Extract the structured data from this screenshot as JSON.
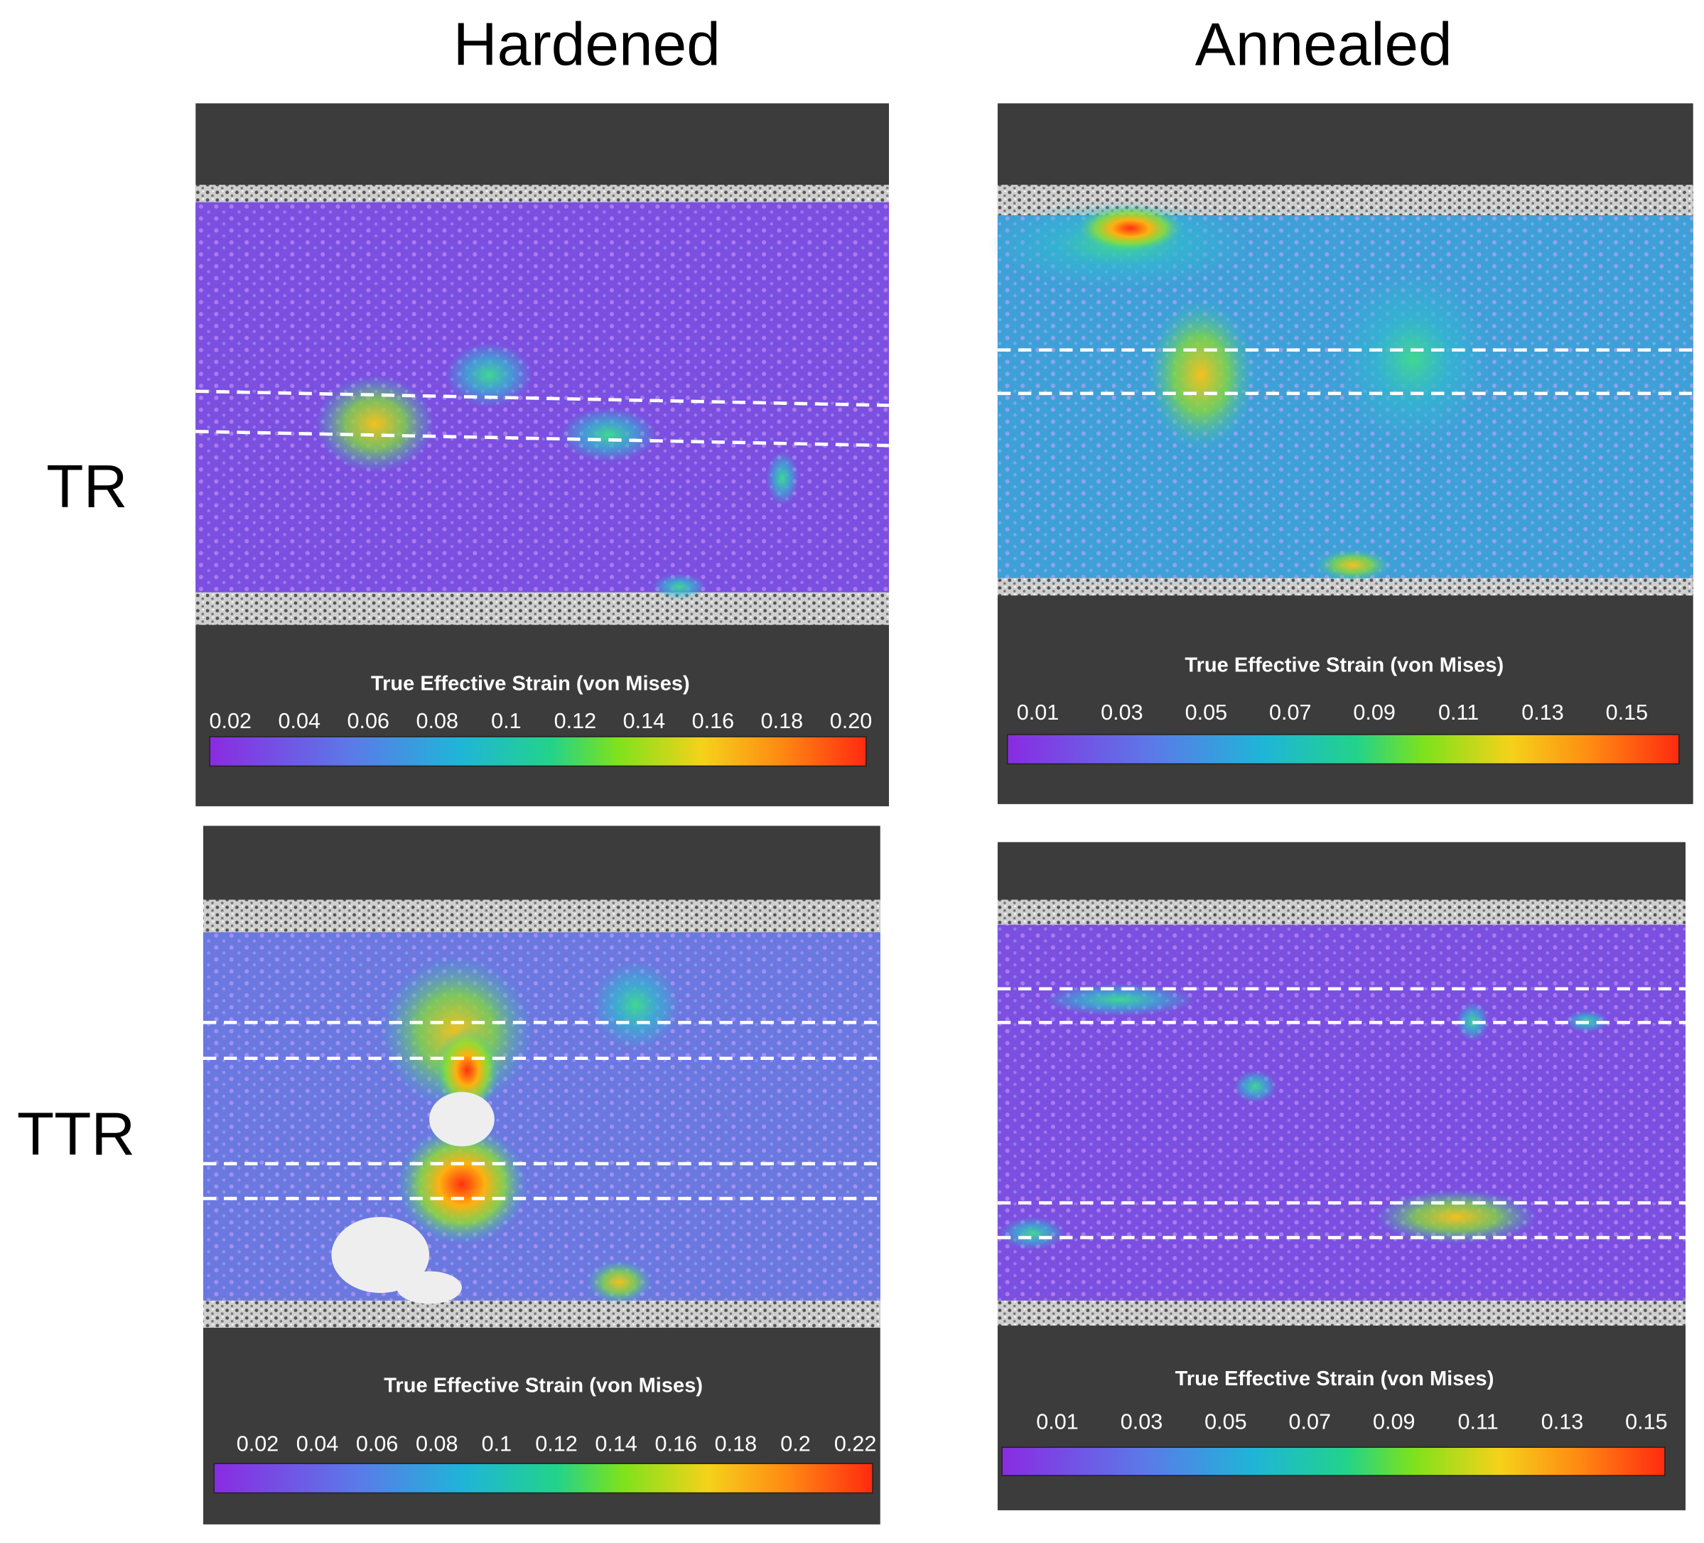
{
  "columns": [
    "Hardened",
    "Annealed"
  ],
  "rows": [
    "TR",
    "TTR"
  ],
  "panels": [
    {
      "colorbar": {
        "title": "True Effective Strain (von Mises)",
        "ticks": [
          "0.02",
          "0.04",
          "0.06",
          "0.08",
          "0.1",
          "0.12",
          "0.14",
          "0.16",
          "0.18",
          "0.20"
        ]
      }
    },
    {
      "colorbar": {
        "title": "True Effective Strain (von Mises)",
        "ticks": [
          "0.01",
          "0.03",
          "0.05",
          "0.07",
          "0.09",
          "0.11",
          "0.13",
          "0.15"
        ]
      }
    },
    {
      "colorbar": {
        "title": "True Effective Strain (von Mises)",
        "ticks": [
          "0.02",
          "0.04",
          "0.06",
          "0.08",
          "0.1",
          "0.12",
          "0.14",
          "0.16",
          "0.18",
          "0.2",
          "0.22"
        ]
      }
    },
    {
      "colorbar": {
        "title": "True Effective Strain (von Mises)",
        "ticks": [
          "0.01",
          "0.03",
          "0.05",
          "0.07",
          "0.09",
          "0.11",
          "0.13",
          "0.15"
        ]
      }
    }
  ]
}
